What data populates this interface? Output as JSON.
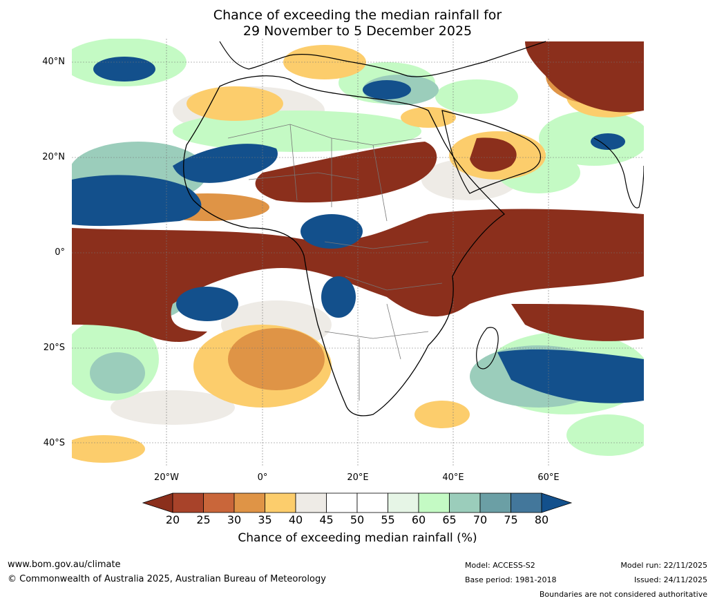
{
  "title": {
    "line1": "Chance of exceeding the median rainfall for",
    "line2": "29 November to 5 December 2025"
  },
  "map": {
    "lat_labels": [
      "40°N",
      "20°N",
      "0°",
      "20°S",
      "40°S"
    ],
    "lon_labels": [
      "20°W",
      "0°",
      "20°E",
      "40°E",
      "60°E"
    ]
  },
  "colorbar": {
    "ticks": [
      "20",
      "25",
      "30",
      "35",
      "40",
      "45",
      "50",
      "55",
      "60",
      "65",
      "70",
      "75",
      "80"
    ],
    "colors": [
      "#8b2f1c",
      "#a8432a",
      "#c9663a",
      "#df9446",
      "#fccd6c",
      "#eeebe6",
      "#ffffff",
      "#ffffff",
      "#e6f5e6",
      "#c4fac4",
      "#9bcdbb",
      "#6b9fa5",
      "#43779b",
      "#13508c"
    ],
    "label": "Chance of exceeding median rainfall (%)"
  },
  "footer": {
    "website": "www.bom.gov.au/climate",
    "copyright": "© Commonwealth of Australia 2025, Australian Bureau of Meteorology",
    "model": "Model: ACCESS-S2",
    "base_period": "Base period: 1981-2018",
    "model_run": "Model run: 22/11/2025",
    "issued": "Issued: 24/11/2025",
    "boundaries": "Boundaries are not considered authoritative"
  }
}
